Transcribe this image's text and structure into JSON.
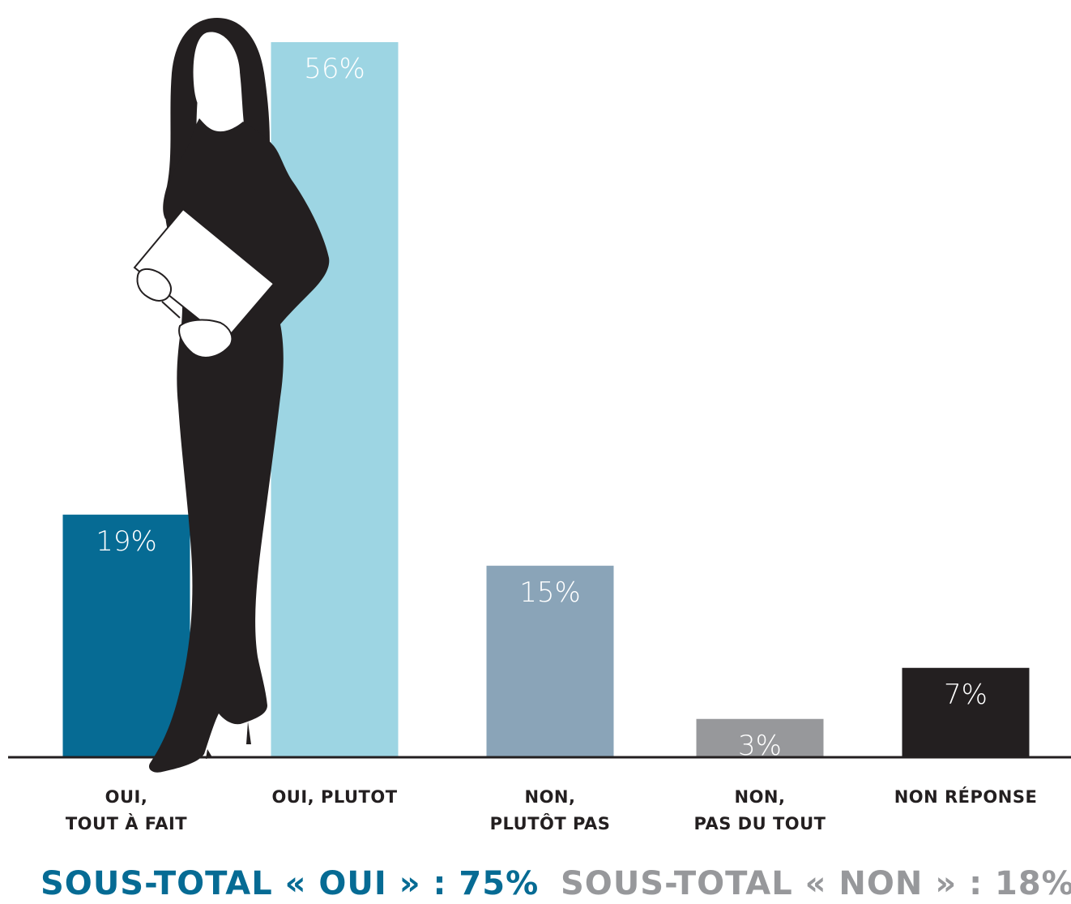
{
  "colors": {
    "oui_tout_a_fait": "#066b94",
    "oui_plutot": "#9dd5e3",
    "non_plutot_pas": "#8aa4b8",
    "non_pas_du_tout": "#97989b",
    "non_reponse": "#231f20",
    "baseline": "#231f20",
    "silhouette": "#231f20",
    "subtotal_oui": "#066b94",
    "subtotal_non": "#97989b"
  },
  "chart_data": {
    "type": "bar",
    "categories": [
      [
        "OUI,",
        "TOUT À FAIT"
      ],
      [
        "OUI, PLUTOT"
      ],
      [
        "NON,",
        "PLUTÔT PAS"
      ],
      [
        "NON,",
        "PAS DU TOUT"
      ],
      [
        "NON RÉPONSE"
      ]
    ],
    "values": [
      19,
      56,
      15,
      3,
      7
    ],
    "value_labels": [
      "19%",
      "56%",
      "15%",
      "3%",
      "7%"
    ],
    "bar_colors": [
      "#066b94",
      "#9dd5e3",
      "#8aa4b8",
      "#97989b",
      "#231f20"
    ],
    "title": "",
    "xlabel": "",
    "ylabel": "",
    "ylim": [
      0,
      60
    ],
    "grid": false,
    "legend": "none"
  },
  "subtotals": {
    "oui": "SOUS-TOTAL « OUI » : 75%",
    "non": "SOUS-TOTAL « NON » : 18%"
  },
  "illustration": "woman-silhouette"
}
